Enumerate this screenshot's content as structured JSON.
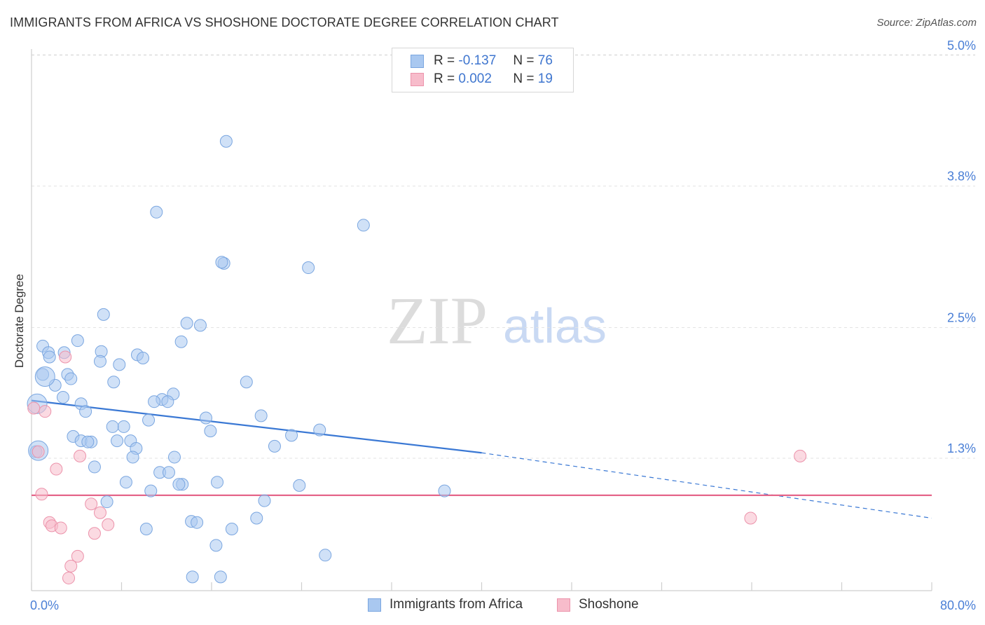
{
  "chart_data": {
    "type": "scatter",
    "title": "IMMIGRANTS FROM AFRICA VS SHOSHONE DOCTORATE DEGREE CORRELATION CHART",
    "source": "Source: ZipAtlas.com",
    "xlabel": "",
    "ylabel": "Doctorate Degree",
    "xlim": [
      0,
      80
    ],
    "ylim": [
      0,
      5.2
    ],
    "x_tick_labels": [
      "0.0%",
      "80.0%"
    ],
    "y_ticks": [
      {
        "value": 1.3,
        "label": "1.3%"
      },
      {
        "value": 2.5,
        "label": "2.5%"
      },
      {
        "value": 3.8,
        "label": "3.8%"
      },
      {
        "value": 5.0,
        "label": "5.0%"
      }
    ],
    "grid": true,
    "watermark": {
      "zip": "ZIP",
      "atlas": "atlas"
    },
    "legend_top": [
      {
        "r_key": "R =",
        "r_value": "-0.137",
        "n_key": "N =",
        "n_value": "76",
        "color": "#a9c8f0",
        "border": "#7aa6e0"
      },
      {
        "r_key": "R =",
        "r_value": "0.002",
        "n_key": "N =",
        "n_value": "19",
        "color": "#f7bccb",
        "border": "#ec93ab"
      }
    ],
    "series": [
      {
        "name": "Immigrants from Africa",
        "color": "#a9c8f0",
        "stroke": "#7aa6e0",
        "trend": {
          "x0": 0,
          "y0": 1.83,
          "x1": 40,
          "y1": 1.35,
          "x_dash_end": 80,
          "y_dash_end": 0.75,
          "color": "#3a78d4"
        },
        "points": [
          [
            17.3,
            4.21
          ],
          [
            11.1,
            3.56
          ],
          [
            29.5,
            3.44
          ],
          [
            17.1,
            3.09
          ],
          [
            16.9,
            3.1
          ],
          [
            24.6,
            3.05
          ],
          [
            6.4,
            2.62
          ],
          [
            13.8,
            2.54
          ],
          [
            15.0,
            2.52
          ],
          [
            13.3,
            2.37
          ],
          [
            4.1,
            2.38
          ],
          [
            1.0,
            2.33
          ],
          [
            1.5,
            2.27
          ],
          [
            2.9,
            2.27
          ],
          [
            6.2,
            2.28
          ],
          [
            9.4,
            2.25
          ],
          [
            9.9,
            2.22
          ],
          [
            1.6,
            2.23
          ],
          [
            6.1,
            2.19
          ],
          [
            7.8,
            2.16
          ],
          [
            3.2,
            2.07
          ],
          [
            1.0,
            2.07
          ],
          [
            3.5,
            2.03
          ],
          [
            19.1,
            2.0
          ],
          [
            7.3,
            2.0
          ],
          [
            2.1,
            1.97
          ],
          [
            12.6,
            1.89
          ],
          [
            2.8,
            1.86
          ],
          [
            11.6,
            1.84
          ],
          [
            10.9,
            1.82
          ],
          [
            12.1,
            1.82
          ],
          [
            4.4,
            1.8
          ],
          [
            4.8,
            1.73
          ],
          [
            20.4,
            1.69
          ],
          [
            15.5,
            1.67
          ],
          [
            10.4,
            1.65
          ],
          [
            8.2,
            1.59
          ],
          [
            7.2,
            1.59
          ],
          [
            25.6,
            1.56
          ],
          [
            15.9,
            1.55
          ],
          [
            23.1,
            1.51
          ],
          [
            3.7,
            1.5
          ],
          [
            8.8,
            1.46
          ],
          [
            7.6,
            1.46
          ],
          [
            4.4,
            1.46
          ],
          [
            5.3,
            1.45
          ],
          [
            5.0,
            1.45
          ],
          [
            21.6,
            1.41
          ],
          [
            9.3,
            1.39
          ],
          [
            0.4,
            1.36
          ],
          [
            9.0,
            1.31
          ],
          [
            12.7,
            1.31
          ],
          [
            5.6,
            1.22
          ],
          [
            11.4,
            1.17
          ],
          [
            12.2,
            1.17
          ],
          [
            8.4,
            1.08
          ],
          [
            13.4,
            1.06
          ],
          [
            16.5,
            1.08
          ],
          [
            13.1,
            1.06
          ],
          [
            23.8,
            1.05
          ],
          [
            10.6,
            1.0
          ],
          [
            36.7,
            1.0
          ],
          [
            6.7,
            0.9
          ],
          [
            20.7,
            0.91
          ],
          [
            20.0,
            0.75
          ],
          [
            14.2,
            0.72
          ],
          [
            14.7,
            0.71
          ],
          [
            10.2,
            0.65
          ],
          [
            17.8,
            0.65
          ],
          [
            16.4,
            0.5
          ],
          [
            26.1,
            0.41
          ],
          [
            14.3,
            0.21
          ],
          [
            16.8,
            0.21
          ],
          [
            0.5,
            1.8
          ],
          [
            1.2,
            2.05
          ],
          [
            0.6,
            1.37
          ]
        ]
      },
      {
        "name": "Shoshone",
        "color": "#f7bccb",
        "stroke": "#ec93ab",
        "trend": {
          "x0": 0,
          "y0": 0.96,
          "x1": 80,
          "y1": 0.96,
          "color": "#e5668a"
        },
        "points": [
          [
            0.2,
            1.76
          ],
          [
            1.2,
            1.73
          ],
          [
            3.0,
            2.23
          ],
          [
            0.6,
            1.36
          ],
          [
            4.3,
            1.32
          ],
          [
            2.2,
            1.2
          ],
          [
            0.9,
            0.97
          ],
          [
            5.3,
            0.88
          ],
          [
            6.1,
            0.8
          ],
          [
            1.6,
            0.71
          ],
          [
            1.8,
            0.68
          ],
          [
            6.8,
            0.69
          ],
          [
            2.6,
            0.66
          ],
          [
            5.6,
            0.61
          ],
          [
            4.1,
            0.4
          ],
          [
            3.5,
            0.31
          ],
          [
            3.3,
            0.2
          ],
          [
            68.3,
            1.32
          ],
          [
            63.9,
            0.75
          ]
        ]
      }
    ]
  }
}
